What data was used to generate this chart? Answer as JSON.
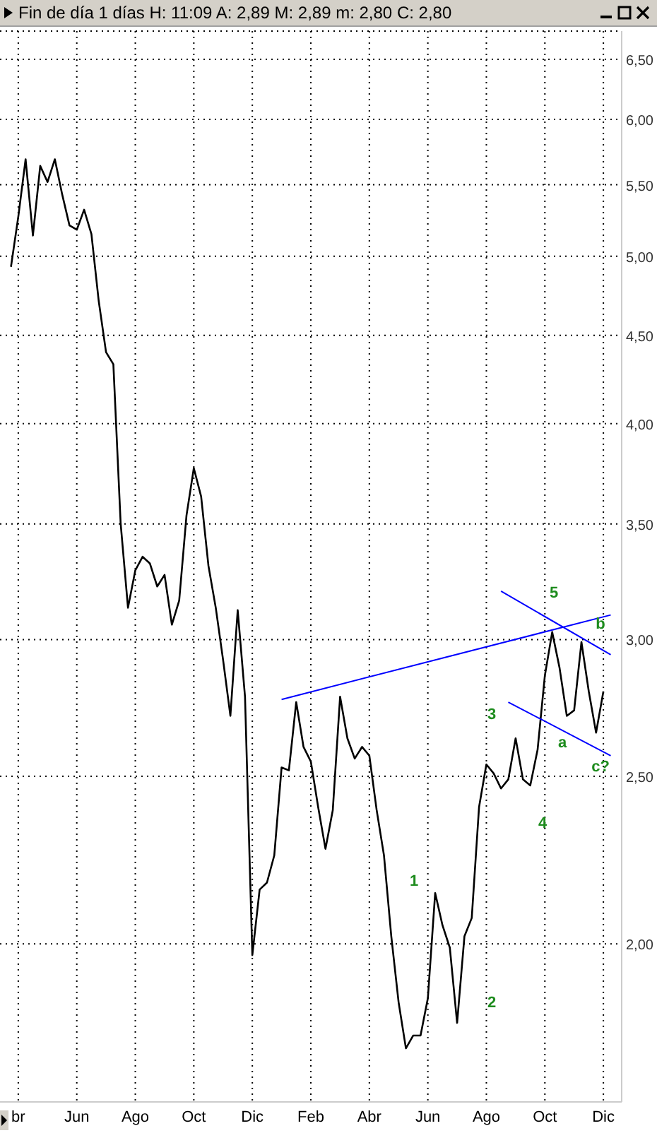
{
  "chart_data": {
    "type": "line",
    "title": "Fin de día 1 días  H: 11:09  A: 2,89  M: 2,89  m: 2,80  C: 2,80",
    "categories": [
      null,
      null,
      "br",
      null,
      null,
      null,
      null,
      null,
      null,
      null,
      "Jun",
      null,
      null,
      null,
      null,
      null,
      null,
      null,
      "Ago",
      null,
      null,
      null,
      null,
      null,
      null,
      null,
      "Oct",
      null,
      null,
      null,
      null,
      null,
      null,
      null,
      "Dic",
      null,
      null,
      null,
      null,
      null,
      null,
      null,
      "Feb",
      null,
      null,
      null,
      null,
      null,
      null,
      null,
      "Abr",
      null,
      null,
      null,
      null,
      null,
      null,
      null,
      "Jun",
      null,
      null,
      null,
      null,
      null,
      null,
      null,
      "Ago",
      null,
      null,
      null,
      null,
      null,
      null,
      null,
      "Oct",
      null,
      null,
      null,
      null,
      null,
      null,
      null,
      "Dic",
      null,
      null
    ],
    "ylim": [
      1.62,
      6.75
    ],
    "yticks": [
      {
        "value": 2,
        "label": "2,00"
      },
      {
        "value": 2.5,
        "label": "2,50"
      },
      {
        "value": 3,
        "label": "3,00"
      },
      {
        "value": 3.5,
        "label": "3,50"
      },
      {
        "value": 4,
        "label": "4,00"
      },
      {
        "value": 4.5,
        "label": "4,50"
      },
      {
        "value": 5,
        "label": "5,00"
      },
      {
        "value": 5.5,
        "label": "5,50"
      },
      {
        "value": 6,
        "label": "6,00"
      },
      {
        "value": 6.5,
        "label": "6,50"
      }
    ],
    "log": "y",
    "grid": true,
    "series": [
      {
        "color": "#000000",
        "values": [
          null,
          4.93,
          5.27,
          5.69,
          5.14,
          5.64,
          5.52,
          5.69,
          5.43,
          5.21,
          5.18,
          5.32,
          5.15,
          4.71,
          4.4,
          4.33,
          3.5,
          3.13,
          3.29,
          3.35,
          3.32,
          3.22,
          3.27,
          3.06,
          3.16,
          3.54,
          3.77,
          3.63,
          3.31,
          3.13,
          2.92,
          2.71,
          3.12,
          2.78,
          1.97,
          2.15,
          2.17,
          2.25,
          2.53,
          2.52,
          2.76,
          2.6,
          2.55,
          2.4,
          2.27,
          2.39,
          2.78,
          2.63,
          2.56,
          2.6,
          2.57,
          2.39,
          2.25,
          2.02,
          1.85,
          1.74,
          1.77,
          1.77,
          1.86,
          2.14,
          2.05,
          1.99,
          1.8,
          2.02,
          2.07,
          2.4,
          2.54,
          2.51,
          2.46,
          2.49,
          2.63,
          2.49,
          2.47,
          2.59,
          2.86,
          3.03,
          2.89,
          2.71,
          2.73,
          2.99,
          2.8,
          2.65,
          2.8,
          null,
          null
        ]
      },
      {
        "type": "line",
        "color": "#0000ff",
        "values": [
          null,
          null,
          null,
          null,
          null,
          null,
          null,
          null,
          null,
          null,
          null,
          null,
          null,
          null,
          null,
          null,
          null,
          null,
          null,
          null,
          null,
          null,
          null,
          null,
          null,
          null,
          null,
          null,
          null,
          null,
          null,
          null,
          null,
          null,
          null,
          null,
          null,
          null,
          2.77,
          null,
          null,
          null,
          null,
          null,
          null,
          null,
          null,
          null,
          null,
          null,
          null,
          null,
          null,
          null,
          null,
          null,
          null,
          null,
          null,
          null,
          null,
          null,
          null,
          null,
          null,
          null,
          null,
          null,
          null,
          null,
          null,
          null,
          null,
          null,
          null,
          null,
          null,
          null,
          null,
          null,
          null,
          null,
          null,
          3.1,
          null
        ]
      },
      {
        "type": "line",
        "color": "#0000ff",
        "values": [
          null,
          null,
          null,
          null,
          null,
          null,
          null,
          null,
          null,
          null,
          null,
          null,
          null,
          null,
          null,
          null,
          null,
          null,
          null,
          null,
          null,
          null,
          null,
          null,
          null,
          null,
          null,
          null,
          null,
          null,
          null,
          null,
          null,
          null,
          null,
          null,
          null,
          null,
          null,
          null,
          null,
          null,
          null,
          null,
          null,
          null,
          null,
          null,
          null,
          null,
          null,
          null,
          null,
          null,
          null,
          null,
          null,
          null,
          null,
          null,
          null,
          null,
          null,
          null,
          null,
          null,
          null,
          null,
          3.2,
          null,
          null,
          null,
          null,
          null,
          null,
          null,
          null,
          null,
          null,
          null,
          null,
          null,
          null,
          2.94,
          null
        ]
      },
      {
        "type": "line",
        "color": "#0000ff",
        "values": [
          null,
          null,
          null,
          null,
          null,
          null,
          null,
          null,
          null,
          null,
          null,
          null,
          null,
          null,
          null,
          null,
          null,
          null,
          null,
          null,
          null,
          null,
          null,
          null,
          null,
          null,
          null,
          null,
          null,
          null,
          null,
          null,
          null,
          null,
          null,
          null,
          null,
          null,
          null,
          null,
          null,
          null,
          null,
          null,
          null,
          null,
          null,
          null,
          null,
          null,
          null,
          null,
          null,
          null,
          null,
          null,
          null,
          null,
          null,
          null,
          null,
          null,
          null,
          null,
          null,
          null,
          null,
          null,
          null,
          2.76,
          null,
          null,
          null,
          null,
          null,
          null,
          null,
          null,
          null,
          null,
          null,
          null,
          null,
          2.57,
          null
        ]
      }
    ],
    "annotations": [
      "1",
      "2",
      "3",
      "4",
      "5",
      "a",
      "b",
      "c?"
    ]
  }
}
